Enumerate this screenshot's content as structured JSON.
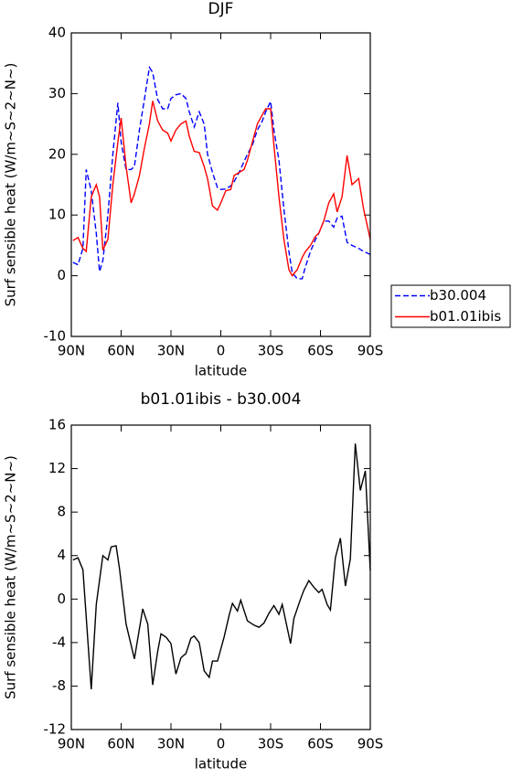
{
  "chart_data": [
    {
      "type": "line",
      "title": "DJF",
      "xlabel": "latitude",
      "ylabel": "Surf sensible heat (W/m~S~2~N~)",
      "x": [
        89,
        86,
        83,
        81,
        78,
        75,
        73,
        71,
        68,
        65,
        62,
        60,
        57,
        54,
        52,
        49,
        46,
        43,
        41,
        38,
        35,
        32,
        30,
        27,
        24,
        21,
        19,
        16,
        13,
        10,
        8,
        5,
        2,
        0,
        -3,
        -6,
        -8,
        -11,
        -14,
        -16,
        -19,
        -22,
        -25,
        -27,
        -30,
        -32,
        -35,
        -38,
        -41,
        -43,
        -46,
        -49,
        -51,
        -54,
        -57,
        -59,
        -62,
        -65,
        -68,
        -70,
        -73,
        -76,
        -79,
        -83,
        -86,
        -90
      ],
      "series": [
        {
          "name": "b30.004",
          "color": "#0000ff",
          "dash": true,
          "values": [
            2.2,
            1.8,
            4.5,
            17.5,
            14,
            7,
            0.7,
            2.5,
            10,
            20,
            28.5,
            22,
            17.5,
            17.5,
            18,
            24,
            29,
            34.3,
            33.5,
            29,
            27.5,
            27.5,
            29.2,
            29.8,
            30,
            29.2,
            27,
            24.5,
            27,
            25,
            20,
            17,
            14.5,
            14.2,
            14.3,
            14.8,
            15.5,
            17,
            18.8,
            20,
            21.5,
            24,
            25.5,
            27,
            28.7,
            24,
            19,
            11,
            4,
            0.5,
            -0.5,
            -0.5,
            1.5,
            4,
            6,
            7,
            9,
            9,
            8,
            9.5,
            9.8,
            5.5,
            5,
            4.5,
            4,
            3.5
          ]
        },
        {
          "name": "b01.01ibis",
          "color": "#ff0000",
          "dash": false,
          "values": [
            5.8,
            6.3,
            4.5,
            4,
            13,
            15,
            13,
            4.2,
            6,
            15,
            22,
            26,
            18,
            12,
            13.5,
            16.5,
            21,
            25,
            28.8,
            25.5,
            24,
            23.5,
            22.2,
            24,
            25,
            25.5,
            23,
            20.5,
            20.3,
            18,
            16,
            11.5,
            10.8,
            12,
            14,
            14.2,
            16.5,
            17,
            17.5,
            19,
            22,
            25,
            26.5,
            27.5,
            27.5,
            21.5,
            13,
            6,
            1,
            0,
            1,
            3,
            4,
            5,
            6.5,
            7,
            9,
            12,
            13.5,
            10.5,
            13,
            19.8,
            15,
            16,
            11,
            6
          ]
        }
      ],
      "xlim": [
        90,
        -90
      ],
      "xticks": [
        {
          "value": 90,
          "label": "90N"
        },
        {
          "value": 60,
          "label": "60N"
        },
        {
          "value": 30,
          "label": "30N"
        },
        0,
        {
          "value": -30,
          "label": "30S"
        },
        {
          "value": -60,
          "label": "60S"
        },
        {
          "value": -90,
          "label": "90S"
        }
      ],
      "ylim": [
        -10,
        40
      ],
      "yticks": [
        -10,
        0,
        10,
        20,
        30,
        40
      ],
      "legend": "right"
    },
    {
      "type": "line",
      "title": "b01.01ibis - b30.004",
      "xlabel": "latitude",
      "ylabel": "Surf sensible heat (W/m~S~2~N~)",
      "x": [
        89,
        86,
        83,
        78,
        75,
        71,
        68,
        66,
        63,
        61,
        57,
        52,
        47,
        44,
        41,
        38,
        36,
        33,
        30,
        27,
        24,
        21,
        18,
        16,
        13,
        10,
        7,
        5,
        2,
        -2,
        -5,
        -7,
        -10,
        -12,
        -16,
        -20,
        -23,
        -26,
        -29,
        -32,
        -35,
        -37,
        -42,
        -44,
        -48,
        -50,
        -53,
        -56,
        -59,
        -61,
        -64,
        -66,
        -69,
        -72,
        -75,
        -78,
        -81,
        -84,
        -87,
        -90
      ],
      "series": [
        {
          "color": "#000000",
          "dash": false,
          "values": [
            3.6,
            3.8,
            2.7,
            -8.3,
            -0.5,
            4,
            3.6,
            4.8,
            4.9,
            2.8,
            -2.3,
            -5.5,
            -0.9,
            -2.3,
            -7.9,
            -4.8,
            -3.2,
            -3.5,
            -4.1,
            -6.9,
            -5.4,
            -5,
            -3.6,
            -3.4,
            -4,
            -6.6,
            -7.2,
            -5.7,
            -5.7,
            -3.5,
            -1.5,
            -0.4,
            -1.1,
            -0.1,
            -2,
            -2.4,
            -2.6,
            -2.2,
            -1.3,
            -0.6,
            -1.4,
            -0.5,
            -4.1,
            -1.8,
            0,
            0.8,
            1.7,
            1.1,
            0.6,
            0.9,
            -0.5,
            -1,
            3.8,
            5.6,
            1.2,
            3.7,
            14.3,
            10,
            11.8,
            2.6
          ]
        }
      ],
      "xlim": [
        90,
        -90
      ],
      "xticks": [
        {
          "value": 90,
          "label": "90N"
        },
        {
          "value": 60,
          "label": "60N"
        },
        {
          "value": 30,
          "label": "30N"
        },
        0,
        {
          "value": -30,
          "label": "30S"
        },
        {
          "value": -60,
          "label": "60S"
        },
        {
          "value": -90,
          "label": "90S"
        }
      ],
      "ylim": [
        -12,
        16
      ],
      "yticks": [
        -12,
        -8,
        -4,
        0,
        4,
        8,
        12,
        16
      ]
    }
  ]
}
